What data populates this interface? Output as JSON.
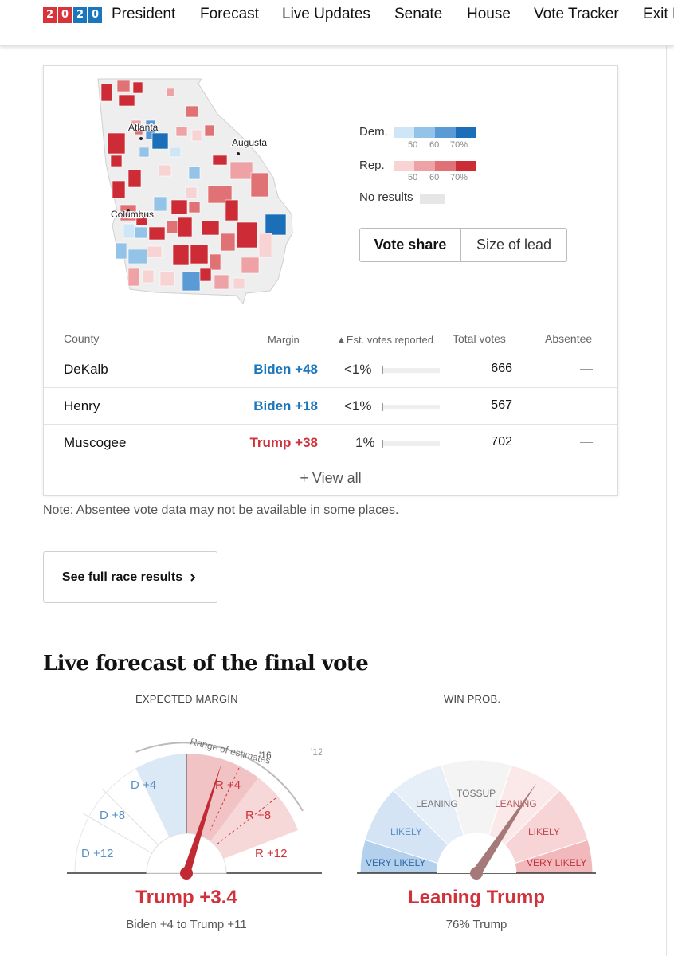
{
  "nav": {
    "logo_digits": [
      "2",
      "0",
      "2",
      "0"
    ],
    "items": [
      "President",
      "Forecast",
      "Live Updates",
      "Senate",
      "House",
      "Vote Tracker",
      "Exit P"
    ]
  },
  "map": {
    "cities": [
      "Atlanta",
      "Augusta",
      "Columbus"
    ]
  },
  "legend": {
    "dem_label": "Dem.",
    "rep_label": "Rep.",
    "ticks": [
      "50",
      "60",
      "70%"
    ],
    "no_results_label": "No results",
    "dem_colors": [
      "#cfe6f7",
      "#94c3e8",
      "#5a9bd6",
      "#1a6fb8"
    ],
    "rep_colors": [
      "#f7d3d3",
      "#eea2a5",
      "#e07174",
      "#cd2b36"
    ],
    "no_results_color": "#e6e6e6"
  },
  "toggle": {
    "active_label": "Vote share",
    "inactive_label": "Size of lead"
  },
  "table": {
    "headers": {
      "county": "County",
      "margin": "Margin",
      "reported": "▲Est. votes reported",
      "total": "Total votes",
      "absentee": "Absentee"
    },
    "rows": [
      {
        "county": "DeKalb",
        "margin": "Biden +48",
        "party": "dem",
        "reported": "<1%",
        "reported_fraction": 0.005,
        "total": "666"
      },
      {
        "county": "Henry",
        "margin": "Biden +18",
        "party": "dem",
        "reported": "<1%",
        "reported_fraction": 0.005,
        "total": "567"
      },
      {
        "county": "Muscogee",
        "margin": "Trump +38",
        "party": "rep",
        "reported": "1%",
        "reported_fraction": 0.01,
        "total": "702"
      }
    ],
    "view_all": "+ View all"
  },
  "note": "Note: Absentee vote data may not be available in some places.",
  "full_results_button": "See full race results",
  "forecast": {
    "heading": "Live forecast of the final vote",
    "margin_gauge": {
      "label": "EXPECTED MARGIN",
      "range_caption": "Range of estimates",
      "labels_dem": [
        "D +4",
        "D +8",
        "D +12"
      ],
      "labels_rep": [
        "R +4",
        "R +8",
        "R +12"
      ],
      "marker_16": "'16",
      "marker_12": "'12",
      "needle_value": "Trump +3.4",
      "needle_margin_points": 3.4,
      "range_text": "Biden +4 to Trump +11"
    },
    "prob_gauge": {
      "label": "WIN PROB.",
      "bands_left": [
        "VERY LIKELY",
        "LIKELY",
        "LEANING"
      ],
      "center": "TOSSUP",
      "bands_right": [
        "LEANING",
        "LIKELY",
        "VERY LIKELY"
      ],
      "result": "Leaning Trump",
      "probability": "76% Trump",
      "trump_probability": 0.76
    },
    "colors": {
      "dem": "#1a76bd",
      "rep": "#d0323c",
      "needle": "#c22a33",
      "prob_needle": "#a5787a"
    }
  }
}
